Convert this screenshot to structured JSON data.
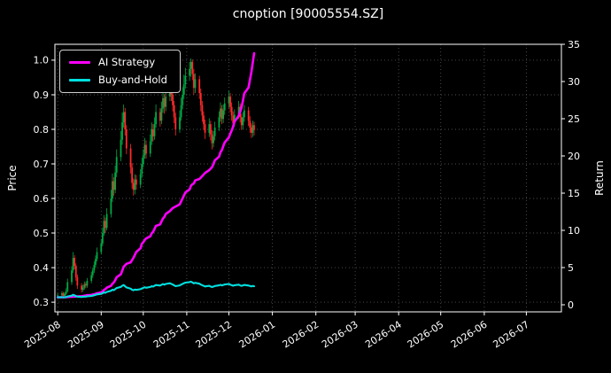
{
  "window": {
    "title": "cnoption [90005554.SZ]"
  },
  "colors": {
    "background": "#000000",
    "text": "#ffffff",
    "grid": "#4f4f4f",
    "spine": "#ffffff",
    "ai_strategy": "#ff00ff",
    "buy_and_hold": "#00e0e0",
    "candle_up": "#00aa44",
    "candle_down": "#ff2a2a"
  },
  "legend": {
    "items": [
      {
        "label": "AI Strategy",
        "color_key": "ai_strategy"
      },
      {
        "label": "Buy-and-Hold",
        "color_key": "buy_and_hold"
      }
    ]
  },
  "chart_data": {
    "type": "candlestick+line",
    "title": "cnoption [90005554.SZ]",
    "xlabel": "",
    "ylabel_left": "Price",
    "ylabel_right": "Return",
    "ylim_left": [
      0.272,
      1.046
    ],
    "ylim_right": [
      0,
      35
    ],
    "grid": true,
    "legend_position": "upper left",
    "yticks_left": [
      0.3,
      0.4,
      0.5,
      0.6,
      0.7,
      0.8,
      0.9,
      1.0
    ],
    "yticks_right": [
      0,
      5,
      10,
      15,
      20,
      25,
      30,
      35
    ],
    "xticks": [
      "2025-08",
      "2025-09",
      "2025-10",
      "2025-11",
      "2025-12",
      "2026-01",
      "2026-02",
      "2026-03",
      "2026-04",
      "2026-05",
      "2026-06",
      "2026-07"
    ],
    "dates": [
      "2025-08-01",
      "2025-08-04",
      "2025-08-05",
      "2025-08-06",
      "2025-08-07",
      "2025-08-08",
      "2025-08-11",
      "2025-08-12",
      "2025-08-13",
      "2025-08-14",
      "2025-08-15",
      "2025-08-18",
      "2025-08-19",
      "2025-08-20",
      "2025-08-21",
      "2025-08-22",
      "2025-08-25",
      "2025-08-26",
      "2025-08-27",
      "2025-08-28",
      "2025-08-29",
      "2025-09-01",
      "2025-09-02",
      "2025-09-03",
      "2025-09-04",
      "2025-09-05",
      "2025-09-08",
      "2025-09-09",
      "2025-09-10",
      "2025-09-11",
      "2025-09-12",
      "2025-09-15",
      "2025-09-16",
      "2025-09-17",
      "2025-09-18",
      "2025-09-19",
      "2025-09-22",
      "2025-09-23",
      "2025-09-24",
      "2025-09-25",
      "2025-09-26",
      "2025-09-29",
      "2025-09-30",
      "2025-10-01",
      "2025-10-02",
      "2025-10-03",
      "2025-10-06",
      "2025-10-07",
      "2025-10-08",
      "2025-10-09",
      "2025-10-10",
      "2025-10-13",
      "2025-10-14",
      "2025-10-15",
      "2025-10-16",
      "2025-10-17",
      "2025-10-20",
      "2025-10-21",
      "2025-10-22",
      "2025-10-23",
      "2025-10-24",
      "2025-10-27",
      "2025-10-28",
      "2025-10-29",
      "2025-10-30",
      "2025-10-31",
      "2025-11-03",
      "2025-11-04",
      "2025-11-05",
      "2025-11-06",
      "2025-11-07",
      "2025-11-10",
      "2025-11-11",
      "2025-11-12",
      "2025-11-13",
      "2025-11-14",
      "2025-11-17",
      "2025-11-18",
      "2025-11-19",
      "2025-11-20",
      "2025-11-21",
      "2025-11-24",
      "2025-11-25",
      "2025-11-26",
      "2025-11-27",
      "2025-11-28",
      "2025-12-01",
      "2025-12-02",
      "2025-12-03",
      "2025-12-04",
      "2025-12-05",
      "2025-12-08",
      "2025-12-09",
      "2025-12-10",
      "2025-12-11",
      "2025-12-12",
      "2025-12-15",
      "2025-12-16",
      "2025-12-17",
      "2025-12-18",
      "2025-12-19"
    ],
    "ohlc": {
      "open": [
        0.318,
        0.32,
        0.326,
        0.318,
        0.324,
        0.332,
        0.358,
        0.392,
        0.428,
        0.405,
        0.372,
        0.348,
        0.336,
        0.342,
        0.352,
        0.348,
        0.362,
        0.378,
        0.392,
        0.408,
        0.425,
        0.445,
        0.47,
        0.5,
        0.535,
        0.515,
        0.555,
        0.6,
        0.65,
        0.625,
        0.675,
        0.72,
        0.77,
        0.82,
        0.85,
        0.8,
        0.745,
        0.69,
        0.645,
        0.625,
        0.655,
        0.64,
        0.67,
        0.7,
        0.725,
        0.755,
        0.73,
        0.765,
        0.8,
        0.78,
        0.815,
        0.85,
        0.825,
        0.86,
        0.89,
        0.865,
        0.895,
        0.925,
        0.9,
        0.87,
        0.835,
        0.8,
        0.835,
        0.87,
        0.9,
        0.93,
        0.955,
        0.975,
        0.995,
        0.96,
        0.92,
        0.945,
        0.905,
        0.87,
        0.84,
        0.815,
        0.79,
        0.815,
        0.785,
        0.76,
        0.78,
        0.805,
        0.835,
        0.86,
        0.83,
        0.855,
        0.875,
        0.895,
        0.865,
        0.84,
        0.818,
        0.842,
        0.865,
        0.835,
        0.812,
        0.835,
        0.855,
        0.825,
        0.805,
        0.79,
        0.812
      ],
      "high": [
        0.326,
        0.332,
        0.33,
        0.329,
        0.34,
        0.368,
        0.404,
        0.445,
        0.436,
        0.412,
        0.38,
        0.355,
        0.35,
        0.36,
        0.358,
        0.37,
        0.388,
        0.4,
        0.418,
        0.435,
        0.458,
        0.482,
        0.515,
        0.552,
        0.545,
        0.572,
        0.625,
        0.672,
        0.662,
        0.695,
        0.742,
        0.795,
        0.848,
        0.872,
        0.862,
        0.812,
        0.758,
        0.702,
        0.658,
        0.67,
        0.668,
        0.685,
        0.718,
        0.742,
        0.775,
        0.768,
        0.785,
        0.82,
        0.815,
        0.835,
        0.872,
        0.862,
        0.88,
        0.912,
        0.902,
        0.918,
        0.952,
        0.938,
        0.915,
        0.882,
        0.848,
        0.855,
        0.892,
        0.922,
        0.958,
        0.978,
        0.995,
        1.005,
        1.002,
        0.975,
        0.962,
        0.955,
        0.918,
        0.882,
        0.852,
        0.828,
        0.832,
        0.825,
        0.798,
        0.795,
        0.822,
        0.852,
        0.878,
        0.87,
        0.872,
        0.892,
        0.912,
        0.905,
        0.878,
        0.852,
        0.858,
        0.882,
        0.875,
        0.845,
        0.85,
        0.87,
        0.865,
        0.838,
        0.818,
        0.825,
        0.822
      ],
      "low": [
        0.312,
        0.316,
        0.312,
        0.314,
        0.32,
        0.328,
        0.35,
        0.385,
        0.395,
        0.362,
        0.338,
        0.328,
        0.33,
        0.336,
        0.34,
        0.342,
        0.355,
        0.37,
        0.385,
        0.4,
        0.418,
        0.438,
        0.462,
        0.492,
        0.5,
        0.508,
        0.545,
        0.59,
        0.608,
        0.615,
        0.662,
        0.708,
        0.755,
        0.805,
        0.782,
        0.728,
        0.672,
        0.628,
        0.608,
        0.612,
        0.625,
        0.63,
        0.66,
        0.69,
        0.715,
        0.715,
        0.72,
        0.755,
        0.765,
        0.77,
        0.805,
        0.808,
        0.815,
        0.848,
        0.845,
        0.852,
        0.882,
        0.882,
        0.852,
        0.818,
        0.782,
        0.79,
        0.825,
        0.858,
        0.888,
        0.918,
        0.94,
        0.952,
        0.942,
        0.9,
        0.905,
        0.888,
        0.852,
        0.822,
        0.798,
        0.772,
        0.778,
        0.768,
        0.742,
        0.748,
        0.768,
        0.795,
        0.822,
        0.815,
        0.818,
        0.842,
        0.862,
        0.85,
        0.825,
        0.805,
        0.808,
        0.83,
        0.82,
        0.798,
        0.8,
        0.822,
        0.81,
        0.79,
        0.775,
        0.778,
        0.782
      ],
      "close": [
        0.32,
        0.326,
        0.318,
        0.324,
        0.332,
        0.358,
        0.392,
        0.428,
        0.405,
        0.372,
        0.348,
        0.336,
        0.342,
        0.352,
        0.348,
        0.362,
        0.378,
        0.392,
        0.408,
        0.425,
        0.445,
        0.47,
        0.5,
        0.535,
        0.515,
        0.555,
        0.6,
        0.65,
        0.625,
        0.675,
        0.72,
        0.77,
        0.82,
        0.85,
        0.8,
        0.745,
        0.69,
        0.645,
        0.625,
        0.655,
        0.64,
        0.67,
        0.7,
        0.725,
        0.755,
        0.73,
        0.765,
        0.8,
        0.78,
        0.815,
        0.85,
        0.825,
        0.86,
        0.89,
        0.865,
        0.895,
        0.925,
        0.9,
        0.87,
        0.835,
        0.8,
        0.835,
        0.87,
        0.9,
        0.93,
        0.955,
        0.975,
        0.995,
        0.96,
        0.92,
        0.945,
        0.905,
        0.87,
        0.84,
        0.815,
        0.79,
        0.815,
        0.785,
        0.76,
        0.78,
        0.805,
        0.835,
        0.86,
        0.83,
        0.855,
        0.875,
        0.895,
        0.865,
        0.84,
        0.818,
        0.842,
        0.865,
        0.835,
        0.812,
        0.835,
        0.855,
        0.825,
        0.805,
        0.79,
        0.812,
        0.798
      ]
    },
    "series": [
      {
        "name": "AI Strategy",
        "axis": "right",
        "color_key": "ai_strategy",
        "values": [
          1.0,
          1.0,
          1.01,
          1.01,
          1.02,
          1.05,
          1.08,
          1.1,
          1.1,
          1.12,
          1.13,
          1.15,
          1.18,
          1.22,
          1.25,
          1.28,
          1.32,
          1.38,
          1.42,
          1.48,
          1.55,
          1.65,
          1.8,
          2.0,
          2.1,
          2.3,
          2.55,
          2.85,
          3.0,
          3.3,
          3.7,
          4.1,
          4.6,
          5.1,
          5.3,
          5.5,
          5.7,
          6.0,
          6.3,
          6.7,
          7.1,
          7.6,
          8.2,
          8.4,
          8.7,
          8.9,
          9.2,
          9.6,
          9.8,
          10.2,
          10.6,
          10.8,
          11.2,
          11.6,
          11.8,
          12.2,
          12.6,
          12.8,
          13.0,
          13.1,
          13.2,
          13.5,
          13.9,
          14.3,
          14.7,
          15.1,
          15.5,
          16.0,
          16.2,
          16.3,
          16.7,
          16.9,
          17.1,
          17.3,
          17.5,
          17.7,
          18.1,
          18.3,
          18.5,
          18.9,
          19.4,
          19.9,
          20.5,
          20.8,
          21.3,
          21.8,
          22.5,
          23.0,
          23.4,
          23.9,
          24.6,
          25.4,
          25.9,
          26.5,
          27.4,
          28.4,
          29.2,
          30.2,
          31.2,
          32.5,
          33.8
        ]
      },
      {
        "name": "Buy-and-Hold",
        "axis": "right",
        "color_key": "buy_and_hold",
        "values": [
          1.0,
          1.02,
          0.99,
          1.01,
          1.04,
          1.12,
          1.23,
          1.34,
          1.27,
          1.16,
          1.09,
          1.05,
          1.07,
          1.1,
          1.09,
          1.13,
          1.18,
          1.23,
          1.28,
          1.33,
          1.39,
          1.47,
          1.56,
          1.67,
          1.61,
          1.73,
          1.88,
          2.03,
          1.95,
          2.11,
          2.25,
          2.41,
          2.56,
          2.66,
          2.5,
          2.33,
          2.16,
          2.02,
          1.95,
          2.05,
          2.0,
          2.09,
          2.19,
          2.27,
          2.36,
          2.28,
          2.39,
          2.5,
          2.44,
          2.55,
          2.66,
          2.58,
          2.69,
          2.78,
          2.7,
          2.8,
          2.89,
          2.81,
          2.72,
          2.61,
          2.5,
          2.61,
          2.72,
          2.81,
          2.91,
          2.98,
          3.05,
          3.11,
          3.0,
          2.88,
          2.95,
          2.83,
          2.72,
          2.63,
          2.55,
          2.47,
          2.55,
          2.45,
          2.38,
          2.44,
          2.52,
          2.61,
          2.69,
          2.59,
          2.67,
          2.73,
          2.8,
          2.7,
          2.63,
          2.56,
          2.63,
          2.7,
          2.61,
          2.54,
          2.61,
          2.67,
          2.58,
          2.52,
          2.47,
          2.54,
          2.49
        ]
      }
    ]
  }
}
